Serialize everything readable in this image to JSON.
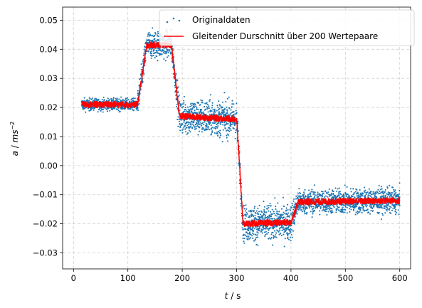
{
  "chart_data": {
    "type": "scatter",
    "title": "",
    "xlabel_var": "t",
    "xlabel_unit": " / s",
    "ylabel_var": "a",
    "ylabel_sep": " / ",
    "ylabel_unit": "ms",
    "ylabel_exp": "−2",
    "xlim": [
      -20,
      620
    ],
    "ylim": [
      -0.0355,
      0.0545
    ],
    "x_ticks": [
      0,
      100,
      200,
      300,
      400,
      500,
      600
    ],
    "x_tick_labels": [
      "0",
      "100",
      "200",
      "300",
      "400",
      "500",
      "600"
    ],
    "y_ticks": [
      -0.03,
      -0.02,
      -0.01,
      0.0,
      0.01,
      0.02,
      0.03,
      0.04,
      0.05
    ],
    "y_tick_labels": [
      "−0.03",
      "−0.02",
      "−0.01",
      "0.00",
      "0.01",
      "0.02",
      "0.03",
      "0.04",
      "0.05"
    ],
    "grid": true,
    "legend_position": "top-right",
    "series": [
      {
        "name": "Originaldaten",
        "kind": "scatter",
        "color": "#1f77b4",
        "level_profile": [
          {
            "x": 15,
            "y": 0.021
          },
          {
            "x": 118,
            "y": 0.021
          },
          {
            "x": 135,
            "y": 0.0415
          },
          {
            "x": 180,
            "y": 0.0415
          },
          {
            "x": 195,
            "y": 0.017
          },
          {
            "x": 300,
            "y": 0.016
          },
          {
            "x": 312,
            "y": -0.02
          },
          {
            "x": 400,
            "y": -0.0195
          },
          {
            "x": 413,
            "y": -0.0125
          },
          {
            "x": 600,
            "y": -0.012
          }
        ],
        "noise_amplitude_segments": [
          {
            "x_from": 15,
            "x_to": 118,
            "amplitude": 0.0018
          },
          {
            "x_from": 118,
            "x_to": 190,
            "amplitude": 0.0042
          },
          {
            "x_from": 190,
            "x_to": 305,
            "amplitude": 0.0055
          },
          {
            "x_from": 305,
            "x_to": 408,
            "amplitude": 0.0055
          },
          {
            "x_from": 408,
            "x_to": 600,
            "amplitude": 0.0038
          }
        ]
      },
      {
        "name": "Gleitender Durschnitt über 200 Wertepaare",
        "kind": "line",
        "color": "#ff0000",
        "x": [
          15,
          118,
          135,
          180,
          195,
          300,
          312,
          400,
          413,
          600
        ],
        "y": [
          0.021,
          0.021,
          0.0415,
          0.0415,
          0.017,
          0.016,
          -0.02,
          -0.0195,
          -0.0125,
          -0.012
        ],
        "noise_amplitude": 0.0011
      }
    ]
  }
}
